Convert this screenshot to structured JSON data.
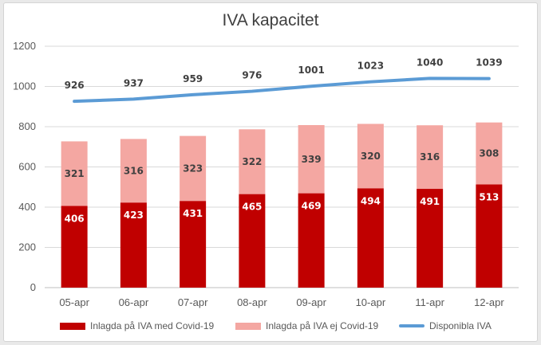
{
  "chart_data": {
    "type": "bar",
    "stacked": true,
    "title": "IVA kapacitet",
    "categories": [
      "05-apr",
      "06-apr",
      "07-apr",
      "08-apr",
      "09-apr",
      "10-apr",
      "11-apr",
      "12-apr"
    ],
    "series": [
      {
        "name": "Inlagda på IVA med Covid-19",
        "kind": "bar",
        "color": "#c00000",
        "values": [
          406,
          423,
          431,
          465,
          469,
          494,
          491,
          513
        ]
      },
      {
        "name": "Inlagda på IVA ej Covid-19",
        "kind": "bar",
        "color": "#f4a7a2",
        "values": [
          321,
          316,
          323,
          322,
          339,
          320,
          316,
          308
        ]
      },
      {
        "name": "Disponibla IVA",
        "kind": "line",
        "color": "#5b9bd5",
        "values": [
          926,
          937,
          959,
          976,
          1001,
          1023,
          1040,
          1039
        ]
      }
    ],
    "ylim": [
      0,
      1200
    ],
    "yticks": [
      0,
      200,
      400,
      600,
      800,
      1000,
      1200
    ],
    "grid": true,
    "legend_position": "bottom"
  }
}
